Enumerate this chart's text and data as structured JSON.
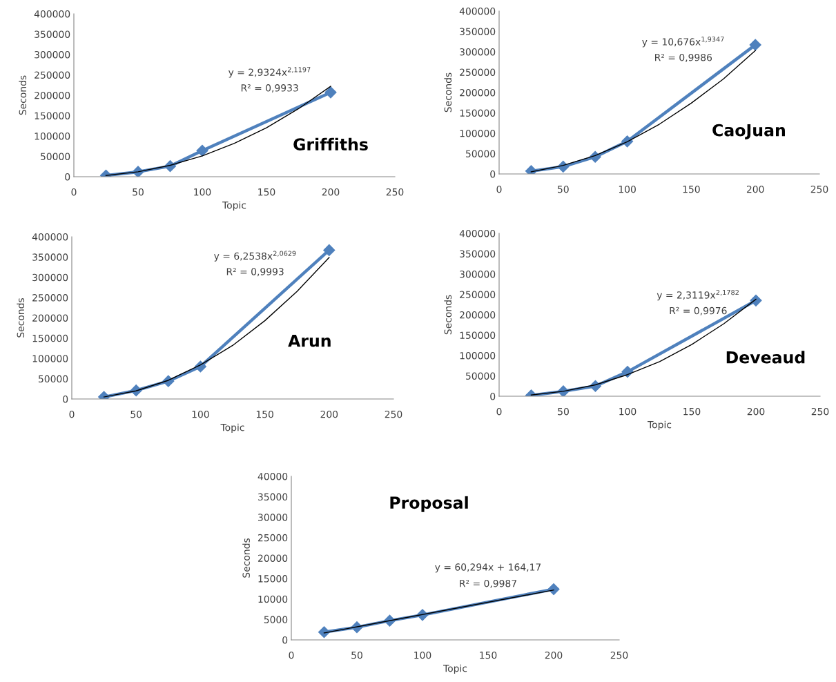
{
  "chart_data": [
    {
      "type": "line",
      "title": "Griffiths",
      "xlabel": "Topic",
      "ylabel": "Seconds",
      "annotations": [
        "y = 2,9324x$^{2,1197}$",
        "R² = 0,9933"
      ],
      "x": [
        25,
        50,
        75,
        100,
        200
      ],
      "xlim": [
        0,
        250
      ],
      "xticks": [
        0,
        50,
        100,
        150,
        200,
        250
      ],
      "ylim": [
        0,
        400000
      ],
      "yticks": [
        0,
        50000,
        100000,
        150000,
        200000,
        250000,
        300000,
        350000,
        400000
      ],
      "grid": false,
      "series": [
        {
          "color": "#4f81bd",
          "marker": "diamond",
          "values": [
            3000,
            12000,
            26000,
            64000,
            207000
          ]
        },
        {
          "color": "#000000",
          "marker": "none",
          "x": [
            25,
            50,
            75,
            100,
            125,
            150,
            175,
            200
          ],
          "values": [
            3000,
            12000,
            28000,
            51000,
            82000,
            120000,
            167000,
            222000
          ]
        }
      ]
    },
    {
      "type": "line",
      "title": "CaoJuan",
      "ylabel": "Seconds",
      "annotations": [
        "y = 10,676x$^{1,9347}$",
        "R² = 0,9986"
      ],
      "x": [
        25,
        50,
        75,
        100,
        200
      ],
      "xlim": [
        0,
        250
      ],
      "xticks": [
        0,
        50,
        100,
        150,
        200,
        250
      ],
      "ylim": [
        0,
        400000
      ],
      "yticks": [
        0,
        50000,
        100000,
        150000,
        200000,
        250000,
        300000,
        350000,
        400000
      ],
      "grid": false,
      "series": [
        {
          "color": "#4f81bd",
          "marker": "diamond",
          "values": [
            7000,
            18000,
            42000,
            80000,
            317000
          ]
        },
        {
          "color": "#000000",
          "marker": "none",
          "x": [
            25,
            50,
            75,
            100,
            125,
            150,
            175,
            200
          ],
          "values": [
            5000,
            21000,
            45000,
            79000,
            122000,
            174000,
            233000,
            303000
          ]
        }
      ]
    },
    {
      "type": "line",
      "title": "Arun",
      "xlabel": "Topic",
      "ylabel": "Seconds",
      "annotations": [
        "y = 6,2538x$^{2,0629}$",
        "R² = 0,9993"
      ],
      "x": [
        25,
        50,
        75,
        100,
        200
      ],
      "xlim": [
        0,
        250
      ],
      "xticks": [
        0,
        50,
        100,
        150,
        200,
        250
      ],
      "ylim": [
        0,
        400000
      ],
      "yticks": [
        0,
        50000,
        100000,
        150000,
        200000,
        250000,
        300000,
        350000,
        400000
      ],
      "grid": false,
      "series": [
        {
          "color": "#4f81bd",
          "marker": "diamond",
          "values": [
            5000,
            21000,
            44000,
            80000,
            367000
          ]
        },
        {
          "color": "#000000",
          "marker": "none",
          "x": [
            25,
            50,
            75,
            100,
            125,
            150,
            175,
            200
          ],
          "values": [
            5000,
            20000,
            46000,
            84000,
            132000,
            193000,
            265000,
            349000
          ]
        }
      ]
    },
    {
      "type": "line",
      "title": "Deveaud",
      "xlabel": "Topic",
      "ylabel": "Seconds",
      "annotations": [
        "y = 2,3119x$^{2,1782}$",
        "R² = 0,9976"
      ],
      "x": [
        25,
        50,
        75,
        100,
        200
      ],
      "xlim": [
        0,
        250
      ],
      "xticks": [
        0,
        50,
        100,
        150,
        200,
        250
      ],
      "ylim": [
        0,
        400000
      ],
      "yticks": [
        0,
        50000,
        100000,
        150000,
        200000,
        250000,
        300000,
        350000,
        400000
      ],
      "grid": false,
      "series": [
        {
          "color": "#4f81bd",
          "marker": "diamond",
          "values": [
            2000,
            12000,
            25000,
            60000,
            235000
          ]
        },
        {
          "color": "#000000",
          "marker": "none",
          "x": [
            25,
            50,
            75,
            100,
            125,
            150,
            175,
            200
          ],
          "values": [
            3000,
            12000,
            28000,
            53000,
            85000,
            127000,
            178000,
            238000
          ]
        }
      ]
    },
    {
      "type": "line",
      "title": "Proposal",
      "xlabel": "Topic",
      "ylabel": "Seconds",
      "annotations": [
        "y = 60,294x + 164,17",
        "R² = 0,9987"
      ],
      "x": [
        25,
        50,
        75,
        100,
        200
      ],
      "xlim": [
        0,
        250
      ],
      "xticks": [
        0,
        50,
        100,
        150,
        200,
        250
      ],
      "ylim": [
        0,
        40000
      ],
      "yticks": [
        0,
        5000,
        10000,
        15000,
        20000,
        25000,
        30000,
        35000,
        40000
      ],
      "grid": false,
      "series": [
        {
          "color": "#4f81bd",
          "marker": "diamond",
          "values": [
            1900,
            3100,
            4700,
            6100,
            12400
          ]
        },
        {
          "color": "#000000",
          "marker": "none",
          "x": [
            25,
            200
          ],
          "values": [
            1700,
            12200
          ]
        }
      ]
    }
  ]
}
